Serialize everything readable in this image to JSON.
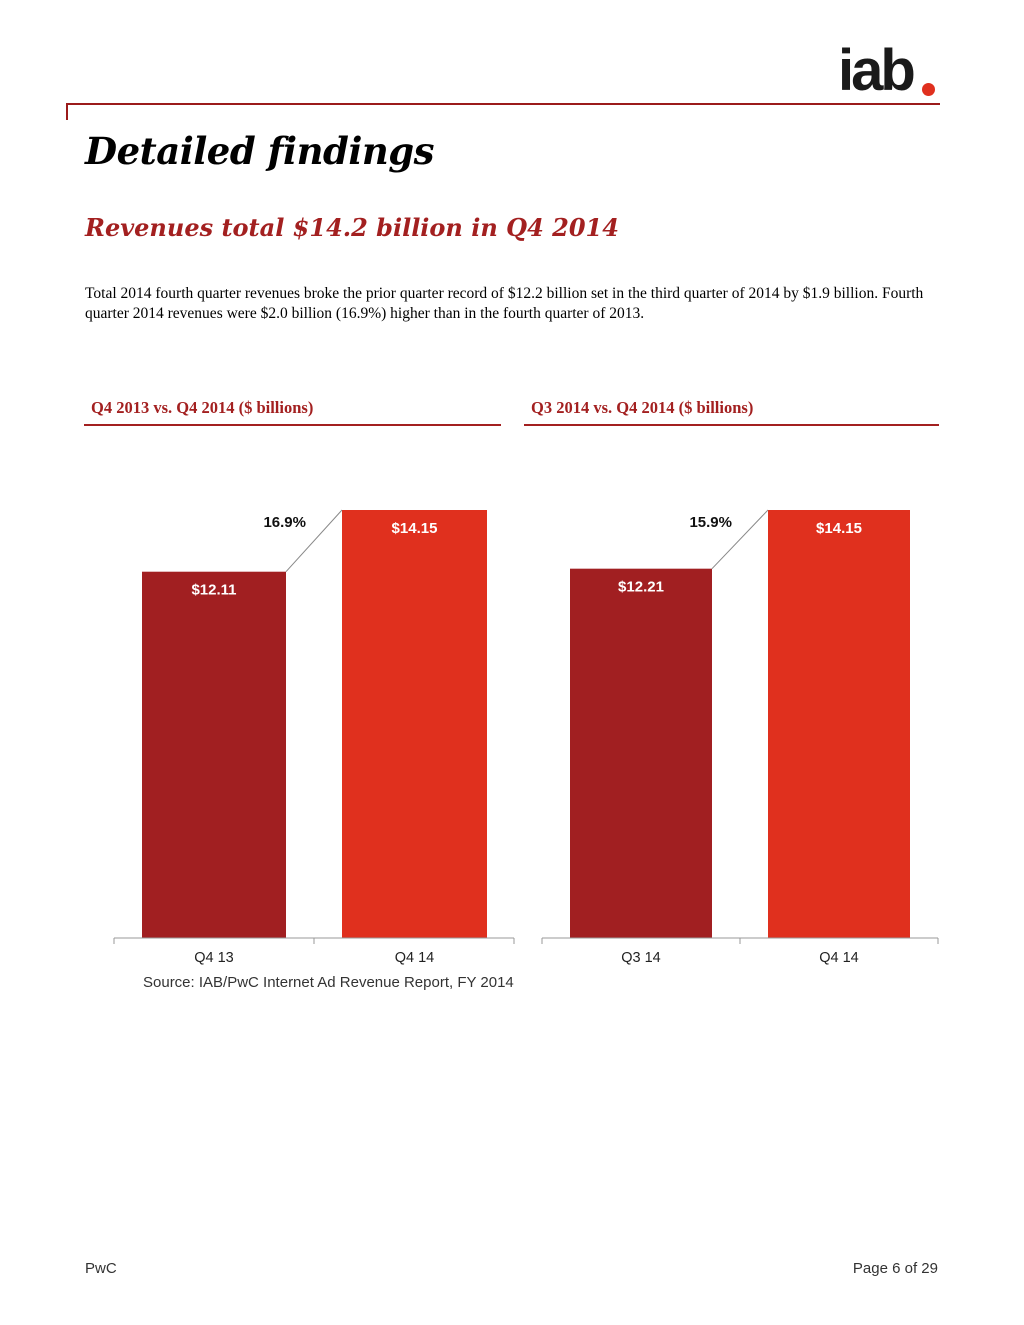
{
  "header": {
    "logo_text": "iab",
    "accent_color": "#a32020",
    "logo_dot_color": "#e0301e"
  },
  "page": {
    "title": "Detailed findings",
    "subtitle": "Revenues total $14.2 billion in Q4 2014",
    "body": "Total 2014 fourth quarter revenues broke the prior quarter record of $12.2 billion set in the third quarter of 2014 by $1.9 billion.  Fourth quarter 2014 revenues were $2.0 billion (16.9%) higher than in the fourth quarter of 2013."
  },
  "chart_data": [
    {
      "type": "bar",
      "title": "Q4 2013 vs. Q4 2014 ($ billions)",
      "categories": [
        "Q4 13",
        "Q4 14"
      ],
      "values": [
        12.11,
        14.15
      ],
      "value_labels": [
        "$12.11",
        "$14.15"
      ],
      "growth_label": "16.9%",
      "bar_colors": [
        "#a11f21",
        "#e0301e"
      ],
      "ylim": [
        0,
        14.15
      ]
    },
    {
      "type": "bar",
      "title": "Q3 2014 vs. Q4 2014 ($ billions)",
      "categories": [
        "Q3 14",
        "Q4 14"
      ],
      "values": [
        12.21,
        14.15
      ],
      "value_labels": [
        "$12.21",
        "$14.15"
      ],
      "growth_label": "15.9%",
      "bar_colors": [
        "#a11f21",
        "#e0301e"
      ],
      "ylim": [
        0,
        14.15
      ]
    }
  ],
  "source": "Source: IAB/PwC Internet Ad Revenue Report, FY 2014",
  "footer": {
    "left": "PwC",
    "right": "Page 6 of 29"
  }
}
